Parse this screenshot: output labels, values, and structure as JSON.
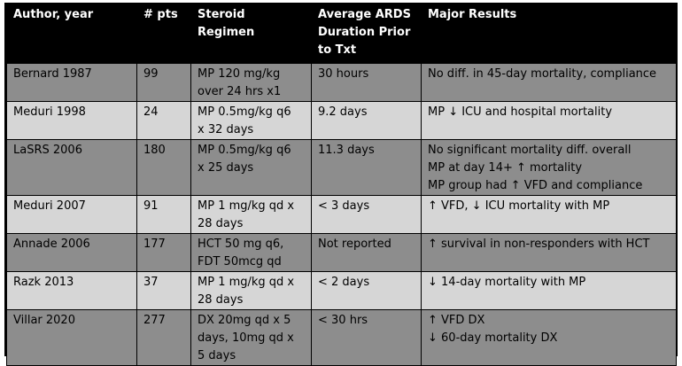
{
  "table": {
    "headers": [
      "Author, year",
      "# pts",
      "Steroid Regimen",
      "Average ARDS Duration Prior to Txt",
      "Major Results"
    ],
    "rows": [
      {
        "author": "Bernard 1987",
        "pts": "99",
        "regimen": [
          "MP 120 mg/kg",
          "over 24 hrs x1"
        ],
        "duration": "30 hours",
        "results": [
          "No diff. in 45-day mortality, compliance"
        ]
      },
      {
        "author": "Meduri 1998",
        "pts": "24",
        "regimen": [
          "MP 0.5mg/kg q6",
          "x 32 days"
        ],
        "duration": "9.2 days",
        "results": [
          "MP ↓ ICU and hospital mortality"
        ]
      },
      {
        "author": "LaSRS 2006",
        "pts": "180",
        "regimen": [
          "MP 0.5mg/kg q6",
          "x 25 days"
        ],
        "duration": "11.3 days",
        "results": [
          "No significant mortality diff. overall",
          "MP at day 14+ ↑ mortality",
          "MP group had ↑ VFD and compliance"
        ]
      },
      {
        "author": "Meduri 2007",
        "pts": "91",
        "regimen": [
          "MP 1 mg/kg qd x",
          "28 days"
        ],
        "duration": "< 3 days",
        "results": [
          "↑ VFD, ↓ ICU mortality with MP"
        ]
      },
      {
        "author": "Annade 2006",
        "pts": "177",
        "regimen": [
          "HCT 50 mg q6,",
          "FDT 50mcg qd"
        ],
        "duration": "Not reported",
        "results": [
          "↑ survival in non-responders with HCT"
        ]
      },
      {
        "author": "Razk 2013",
        "pts": "37",
        "regimen": [
          "MP 1 mg/kg qd x",
          "28 days"
        ],
        "duration": "< 2 days",
        "results": [
          "↓ 14-day mortality with MP"
        ]
      },
      {
        "author": "Villar 2020",
        "pts": "277",
        "regimen": [
          "DX 20mg qd x 5",
          "days, 10mg qd x",
          "5 days"
        ],
        "duration": "< 30 hrs",
        "results": [
          "↑ VFD DX",
          "↓ 60-day mortality DX"
        ]
      }
    ]
  }
}
